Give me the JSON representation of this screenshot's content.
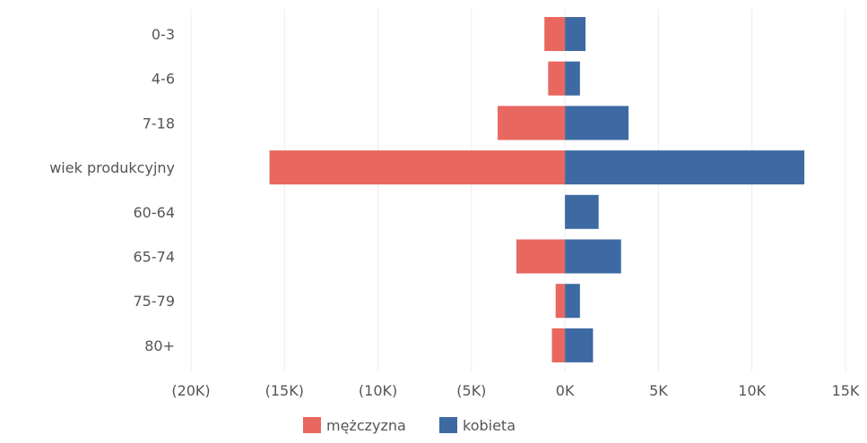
{
  "chart_data": {
    "type": "bar",
    "orientation": "horizontal",
    "layout": "diverging",
    "categories": [
      "0-3",
      "4-6",
      "7-18",
      "wiek produkcyjny",
      "60-64",
      "65-74",
      "75-79",
      "80+"
    ],
    "series": [
      {
        "name": "mężczyzna",
        "color": "#e8675f",
        "values": [
          -1100,
          -900,
          -3600,
          -15800,
          0,
          -2600,
          -500,
          -700
        ]
      },
      {
        "name": "kobieta",
        "color": "#3e6aa3",
        "values": [
          1100,
          800,
          3400,
          12800,
          1800,
          3000,
          800,
          1500
        ]
      }
    ],
    "xlim": [
      -20000,
      15000
    ],
    "x_ticks": [
      -20000,
      -15000,
      -10000,
      -5000,
      0,
      5000,
      10000,
      15000
    ],
    "x_tick_labels": [
      "(20K)",
      "(15K)",
      "(10K)",
      "(5K)",
      "0K",
      "5K",
      "10K",
      "15K"
    ],
    "grid": "vertical",
    "legend_position": "bottom-center"
  }
}
